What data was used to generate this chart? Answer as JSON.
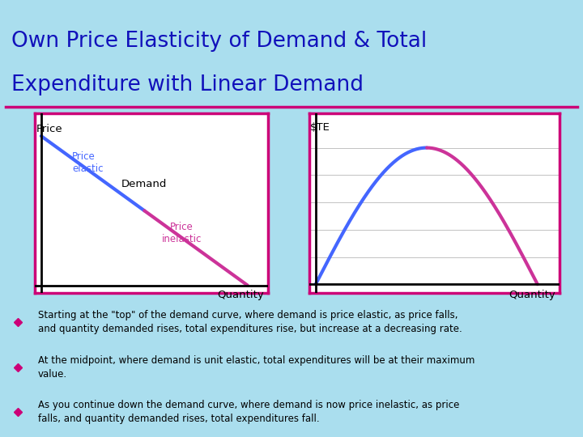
{
  "title_line1": "Own Price Elasticity of Demand & Total",
  "title_line2": "Expenditure with Linear Demand",
  "title_color": "#1111BB",
  "bg_color": "#AADEEE",
  "panel_bg": "#FFFFFF",
  "border_color": "#CC0077",
  "title_fontsize": 19,
  "left_ylabel": "Price",
  "left_xlabel": "Quantity",
  "left_label_demand": "Demand",
  "left_label_elastic": "Price\nelastic",
  "left_label_inelastic": "Price\ninelastic",
  "right_ylabel": "$TE",
  "right_xlabel": "Quantity",
  "bullet_color": "#CC0077",
  "bullet_text_color": "#000000",
  "bullet_fontsize": 8.5,
  "bullets": [
    "Starting at the \"top\" of the demand curve, where demand is price elastic, as price falls,\nand quantity demanded rises, total expenditures rise, but increase at a decreasing rate.",
    "At the midpoint, where demand is unit elastic, total expenditures will be at their maximum\nvalue.",
    "As you continue down the demand curve, where demand is now price inelastic, as price\nfalls, and quantity demanded rises, total expenditures fall."
  ],
  "elastic_color": "#4466FF",
  "inelastic_color": "#CC3399",
  "te_curve_color_top": "#4466FF",
  "te_curve_color_bottom": "#CC3399",
  "divider_color": "#CC0077"
}
